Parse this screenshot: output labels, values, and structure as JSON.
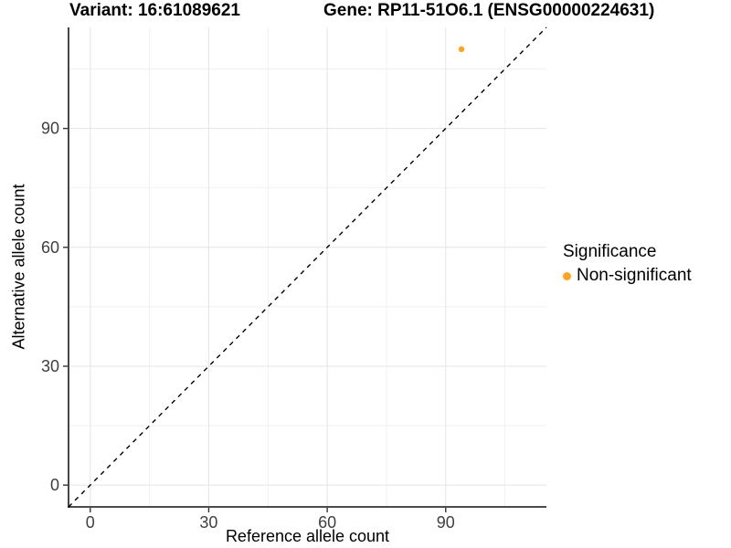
{
  "chart_data": {
    "type": "scatter",
    "title_variant": "Variant: 16:61089621",
    "title_gene": "Gene: RP11-51O6.1 (ENSG00000224631)",
    "xlabel": "Reference allele count",
    "ylabel": "Alternative allele count",
    "xlim": [
      -5.5,
      115.5
    ],
    "ylim": [
      -5.5,
      115.5
    ],
    "major_ticks": [
      0,
      30,
      60,
      90
    ],
    "minor_ticks": [
      15,
      45,
      75,
      105
    ],
    "grid": true,
    "legend_position": "right",
    "identity_line": {
      "type": "dashed",
      "color": "#000000",
      "from": -5.5,
      "to": 115.5
    },
    "points": [
      {
        "x": 94,
        "y": 110,
        "series": "Non-significant"
      }
    ],
    "legend": {
      "title": "Significance",
      "items": [
        {
          "label": "Non-significant",
          "color": "#FFA41E"
        }
      ]
    },
    "colors": {
      "point": "#FFA41E",
      "axis_line": "#333333",
      "tick_text": "#404040",
      "grid_major": "#E4E4E4",
      "grid_minor": "#F1F1F1",
      "background": "#FFFFFF"
    }
  }
}
